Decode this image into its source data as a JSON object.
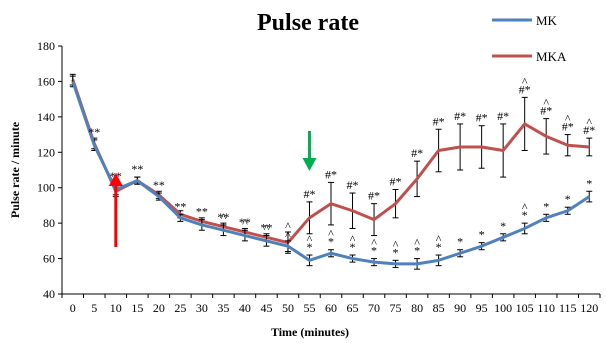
{
  "chart_data": {
    "type": "line",
    "title": "Pulse rate",
    "xlabel": "Time (minutes)",
    "ylabel": "Pulse rate / minute",
    "x": [
      0,
      5,
      10,
      15,
      20,
      25,
      30,
      35,
      40,
      45,
      50,
      55,
      60,
      65,
      70,
      75,
      80,
      85,
      90,
      95,
      100,
      105,
      110,
      115,
      120
    ],
    "ylim": [
      40,
      180
    ],
    "yticks": [
      40,
      60,
      80,
      100,
      120,
      140,
      160,
      180
    ],
    "legend_position": "top-right",
    "series": [
      {
        "name": "MK",
        "color": "#4f81bd",
        "values": [
          160,
          124,
          99,
          104,
          95,
          83,
          79,
          76,
          73,
          70,
          67,
          59,
          63,
          60,
          58,
          57,
          57,
          59,
          63,
          67,
          72,
          77,
          83,
          87,
          95
        ],
        "errors": [
          3,
          3,
          3,
          2,
          2,
          2,
          3,
          3,
          3,
          3,
          3,
          3,
          2,
          2,
          2,
          2,
          3,
          3,
          2,
          2,
          2,
          3,
          2,
          2,
          3
        ],
        "annotations": [
          "",
          "**",
          "**",
          "**",
          "**",
          "**",
          "**",
          "**",
          "**",
          "**",
          "^",
          "^*",
          "^*",
          "^*",
          "^*",
          "^*",
          "^*",
          "^*",
          "*",
          "*",
          "*",
          "^*",
          "*",
          "*",
          "*"
        ]
      },
      {
        "name": "MKA",
        "color": "#c0504d",
        "values": [
          161,
          125,
          98,
          104,
          96,
          85,
          81,
          78,
          75,
          72,
          69,
          83,
          91,
          87,
          82,
          91,
          105,
          121,
          123,
          123,
          121,
          136,
          129,
          124,
          123
        ],
        "errors": [
          3,
          3,
          3,
          2,
          2,
          2,
          2,
          2,
          2,
          2,
          6,
          9,
          12,
          10,
          9,
          8,
          10,
          12,
          13,
          12,
          15,
          15,
          10,
          6,
          5
        ],
        "annotations": [
          "",
          "",
          "",
          "",
          "",
          "",
          "",
          "^",
          "^",
          "^",
          "^",
          "#*",
          "#*",
          "#*",
          "#*",
          "#*",
          "#*",
          "#*",
          "#*",
          "#*",
          "#*",
          "^#*",
          "^#*",
          "^#*",
          "^#*"
        ]
      }
    ],
    "arrows": [
      {
        "x": 10,
        "color": "#ff0000",
        "direction": "up"
      },
      {
        "x": 55,
        "color": "#00b050",
        "direction": "down"
      }
    ]
  }
}
